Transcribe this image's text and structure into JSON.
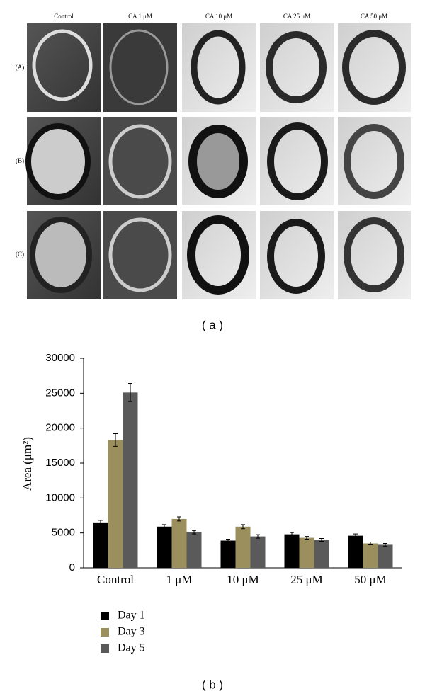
{
  "panel_a": {
    "column_labels": [
      "Control",
      "CA 1 μM",
      "CA 10 μM",
      "CA 25 μM",
      "CA 50 μM"
    ],
    "row_labels": [
      "(A)",
      "(B)",
      "(C)"
    ],
    "caption": "( a )"
  },
  "chart_data": {
    "type": "bar",
    "ylabel": "Area (μm²)",
    "categories": [
      "Control",
      "1 μM",
      "10 μM",
      "25 μM",
      "50 μM"
    ],
    "series": [
      {
        "name": "Day 1",
        "color": "#000000",
        "values": [
          6500,
          5900,
          3900,
          4800,
          4600
        ],
        "errors": [
          300,
          300,
          200,
          250,
          250
        ]
      },
      {
        "name": "Day 3",
        "color": "#9b8f5e",
        "values": [
          18300,
          7000,
          5900,
          4300,
          3500
        ],
        "errors": [
          900,
          300,
          300,
          200,
          200
        ]
      },
      {
        "name": "Day 5",
        "color": "#5a5a5a",
        "values": [
          25100,
          5100,
          4500,
          4000,
          3300
        ],
        "errors": [
          1300,
          250,
          250,
          200,
          200
        ]
      }
    ],
    "ylim": [
      0,
      30000
    ],
    "yticks": [
      0,
      5000,
      10000,
      15000,
      20000,
      25000,
      30000
    ],
    "grid": false,
    "legend": "bottom-left",
    "caption": "( b )"
  }
}
